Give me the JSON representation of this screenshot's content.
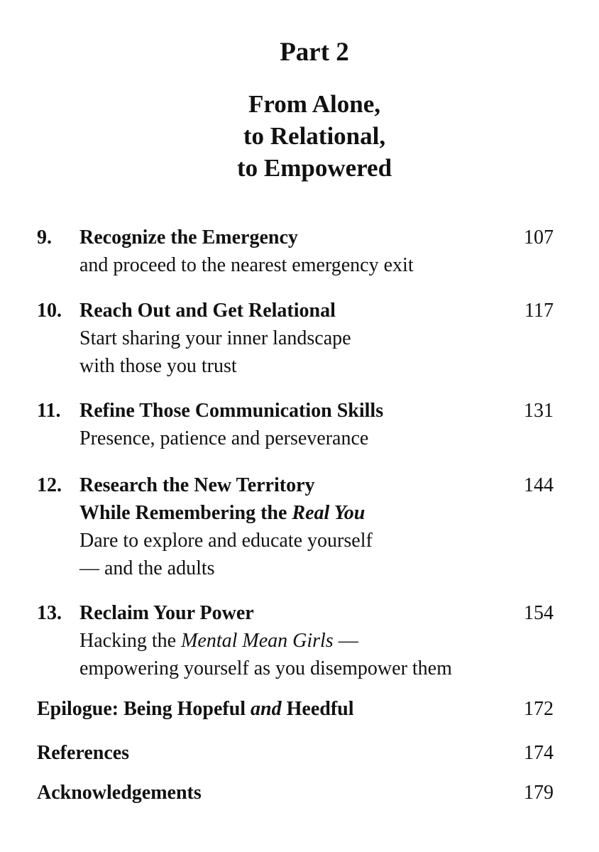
{
  "part_label": "Part 2",
  "heading_lines": [
    "From Alone,",
    "to Relational,",
    "to Empowered"
  ],
  "entries": [
    {
      "number": "9.",
      "title_lines": [
        [
          {
            "t": "Recognize the Emergency"
          }
        ]
      ],
      "subtitle_lines": [
        [
          {
            "t": "and proceed to the nearest emergency exit"
          }
        ]
      ],
      "page": "107"
    },
    {
      "number": "10.",
      "title_lines": [
        [
          {
            "t": "Reach Out and Get Relational"
          }
        ]
      ],
      "subtitle_lines": [
        [
          {
            "t": "Start sharing your inner landscape"
          }
        ],
        [
          {
            "t": "with those you trust"
          }
        ]
      ],
      "page": "117"
    },
    {
      "number": "11.",
      "title_lines": [
        [
          {
            "t": "Refine Those Communication Skills"
          }
        ]
      ],
      "subtitle_lines": [
        [
          {
            "t": "Presence, patience and perseverance"
          }
        ]
      ],
      "page": "131"
    },
    {
      "number": "12.",
      "title_lines": [
        [
          {
            "t": "Research the New Territory"
          }
        ],
        [
          {
            "t": "While Remembering the "
          },
          {
            "t": "Real You",
            "i": true
          }
        ]
      ],
      "subtitle_lines": [
        [
          {
            "t": "Dare to explore and educate yourself"
          }
        ],
        [
          {
            "t": "— and the adults"
          }
        ]
      ],
      "page": "144"
    },
    {
      "number": "13.",
      "title_lines": [
        [
          {
            "t": "Reclaim Your Power"
          }
        ]
      ],
      "subtitle_lines": [
        [
          {
            "t": "Hacking the "
          },
          {
            "t": "Mental Mean Girls",
            "i": true
          },
          {
            "t": " —"
          }
        ],
        [
          {
            "t": "empowering yourself as you disempower them"
          }
        ]
      ],
      "page": "154"
    },
    {
      "number": "",
      "title_lines": [
        [
          {
            "t": "Epilogue: Being Hopeful "
          },
          {
            "t": "and",
            "i": true
          },
          {
            "t": " Heedful"
          }
        ]
      ],
      "subtitle_lines": [],
      "page": "172"
    },
    {
      "number": "",
      "title_lines": [
        [
          {
            "t": "References"
          }
        ]
      ],
      "subtitle_lines": [],
      "page": "174"
    },
    {
      "number": "",
      "title_lines": [
        [
          {
            "t": "Acknowledgements"
          }
        ]
      ],
      "subtitle_lines": [],
      "page": "179"
    }
  ]
}
